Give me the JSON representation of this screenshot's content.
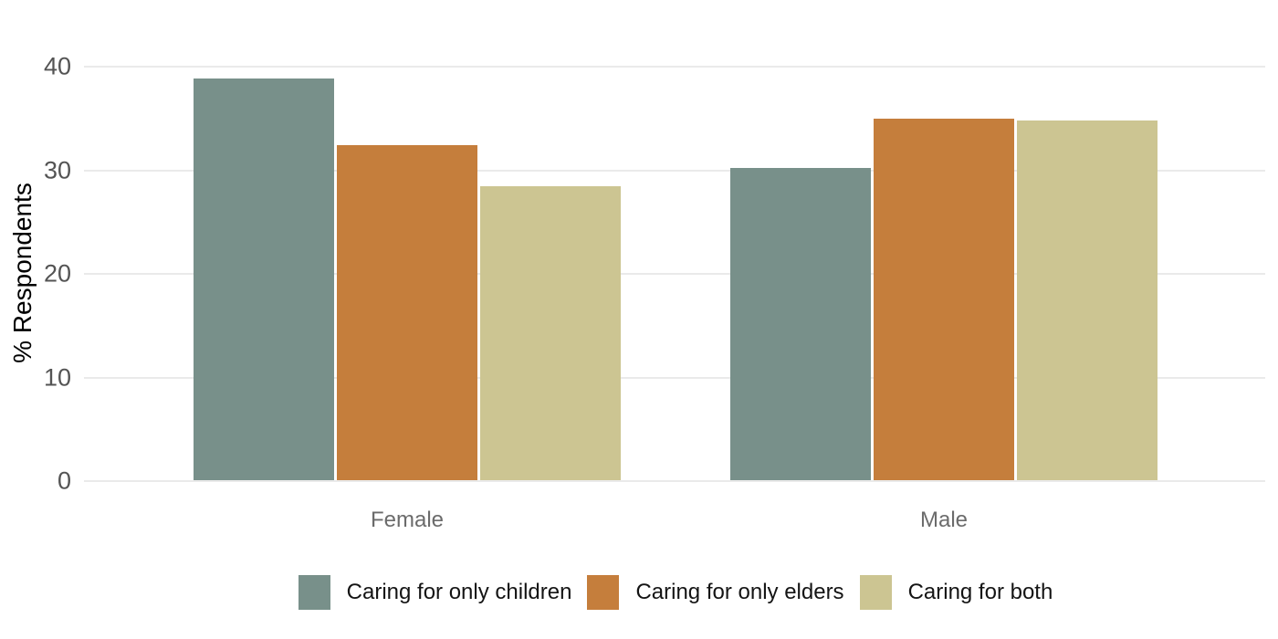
{
  "chart_data": {
    "type": "bar",
    "title": "",
    "xlabel": "",
    "ylabel": "% Respondents",
    "categories": [
      "Female",
      "Male"
    ],
    "series": [
      {
        "name": "Caring for only children",
        "color": "#78908A",
        "values": [
          38.8,
          30.1
        ]
      },
      {
        "name": "Caring for only elders",
        "color": "#C57E3C",
        "values": [
          32.3,
          34.9
        ]
      },
      {
        "name": "Caring for both",
        "color": "#CCC592",
        "values": [
          28.4,
          34.7
        ]
      }
    ],
    "ylim": [
      0,
      45
    ],
    "yticks": [
      0,
      10,
      20,
      30,
      40
    ],
    "grid": true,
    "gridline_color": "#eaeaea",
    "legend_position": "bottom"
  }
}
